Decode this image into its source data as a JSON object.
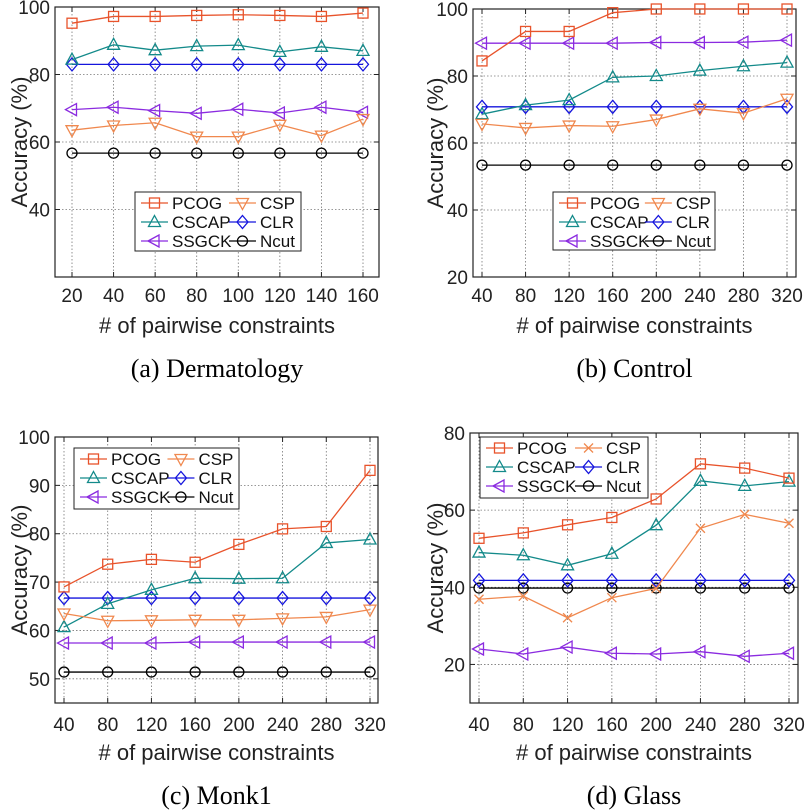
{
  "colors": {
    "PCOG": "#e8532b",
    "CSP": "#f0884e",
    "CSCAP": "#138a8a",
    "CLR": "#1515dd",
    "SSGCK": "#8b2be0",
    "Ncut": "#000000"
  },
  "chart_data": [
    {
      "type": "line",
      "caption": "(a) Dermatology",
      "xlabel": "# of pairwise constraints",
      "ylabel": "Accuracy (%)",
      "x": [
        20,
        40,
        60,
        80,
        100,
        120,
        140,
        160
      ],
      "ylim": [
        20,
        100
      ],
      "yticks": [
        40,
        60,
        80,
        100
      ],
      "grid": true,
      "legend_position": "lower-center",
      "series": [
        {
          "name": "PCOG",
          "marker": "square",
          "values": [
            95.2,
            97.2,
            97.2,
            97.5,
            97.7,
            97.5,
            97.2,
            98.2
          ]
        },
        {
          "name": "CSP",
          "marker": "triangle-down",
          "values": [
            63.5,
            64.9,
            65.7,
            61.6,
            61.6,
            65.1,
            61.9,
            66.8
          ]
        },
        {
          "name": "CSCAP",
          "marker": "triangle-up",
          "values": [
            84.4,
            88.8,
            87.2,
            88.4,
            88.7,
            86.7,
            88.2,
            87.0
          ]
        },
        {
          "name": "CLR",
          "marker": "diamond",
          "values": [
            83.0,
            83.0,
            83.0,
            83.0,
            83.0,
            83.0,
            83.0,
            83.0
          ]
        },
        {
          "name": "SSGCK",
          "marker": "triangle-left",
          "values": [
            69.6,
            70.3,
            69.3,
            68.5,
            69.7,
            68.6,
            70.3,
            68.8
          ]
        },
        {
          "name": "Ncut",
          "marker": "circle",
          "values": [
            56.7,
            56.7,
            56.7,
            56.7,
            56.7,
            56.7,
            56.7,
            56.7
          ]
        }
      ]
    },
    {
      "type": "line",
      "caption": "(b) Control",
      "xlabel": "# of pairwise constraints",
      "ylabel": "Accuracy (%)",
      "x": [
        40,
        80,
        120,
        160,
        200,
        240,
        280,
        320
      ],
      "ylim": [
        20,
        100
      ],
      "yticks": [
        20,
        40,
        60,
        80,
        100
      ],
      "grid": true,
      "legend_position": "lower-center",
      "series": [
        {
          "name": "PCOG",
          "marker": "square",
          "values": [
            84.5,
            93.3,
            93.3,
            98.9,
            100,
            100,
            100,
            100
          ]
        },
        {
          "name": "CSP",
          "marker": "triangle-down",
          "values": [
            65.7,
            64.5,
            65.2,
            65.0,
            67.0,
            70.2,
            68.9,
            73.2
          ]
        },
        {
          "name": "CSCAP",
          "marker": "triangle-up",
          "values": [
            68.6,
            71.3,
            72.8,
            79.6,
            80.0,
            81.6,
            82.9,
            84.0
          ]
        },
        {
          "name": "CLR",
          "marker": "diamond",
          "values": [
            70.8,
            70.8,
            70.8,
            70.8,
            70.8,
            70.8,
            70.8,
            70.8
          ]
        },
        {
          "name": "SSGCK",
          "marker": "triangle-left",
          "values": [
            89.8,
            89.8,
            89.8,
            89.8,
            90.0,
            90.0,
            90.1,
            90.7
          ]
        },
        {
          "name": "Ncut",
          "marker": "circle",
          "values": [
            53.4,
            53.4,
            53.4,
            53.4,
            53.4,
            53.4,
            53.4,
            53.4
          ]
        }
      ]
    },
    {
      "type": "line",
      "caption": "(c) Monk1",
      "xlabel": "# of pairwise constraints",
      "ylabel": "Accuracy (%)",
      "x": [
        40,
        80,
        120,
        160,
        200,
        240,
        280,
        320
      ],
      "ylim": [
        45,
        100
      ],
      "yticks": [
        50,
        60,
        70,
        80,
        90,
        100
      ],
      "grid": true,
      "legend_position": "top-left",
      "series": [
        {
          "name": "PCOG",
          "marker": "square",
          "values": [
            69.0,
            73.7,
            74.7,
            74.1,
            77.8,
            81.0,
            81.5,
            93.1
          ]
        },
        {
          "name": "CSP",
          "marker": "triangle-down",
          "values": [
            63.5,
            62.0,
            62.1,
            62.2,
            62.2,
            62.5,
            62.8,
            64.3
          ]
        },
        {
          "name": "CSCAP",
          "marker": "triangle-up",
          "values": [
            60.7,
            65.5,
            68.4,
            70.8,
            70.7,
            70.8,
            78.1,
            78.8
          ]
        },
        {
          "name": "CLR",
          "marker": "diamond",
          "values": [
            66.7,
            66.7,
            66.7,
            66.7,
            66.7,
            66.7,
            66.7,
            66.7
          ]
        },
        {
          "name": "SSGCK",
          "marker": "triangle-left",
          "values": [
            57.4,
            57.4,
            57.4,
            57.6,
            57.6,
            57.6,
            57.6,
            57.6
          ]
        },
        {
          "name": "Ncut",
          "marker": "circle",
          "values": [
            51.4,
            51.4,
            51.4,
            51.4,
            51.4,
            51.4,
            51.4,
            51.4
          ]
        }
      ]
    },
    {
      "type": "line",
      "caption": "(d) Glass",
      "xlabel": "# of pairwise constraints",
      "ylabel": "Accuracy (%)",
      "x": [
        40,
        80,
        120,
        160,
        200,
        240,
        280,
        320
      ],
      "ylim": [
        10,
        80
      ],
      "yticks": [
        20,
        40,
        60,
        80
      ],
      "grid": true,
      "legend_position": "top-left",
      "series": [
        {
          "name": "PCOG",
          "marker": "square",
          "values": [
            52.7,
            54.1,
            56.2,
            58.1,
            62.9,
            72.0,
            70.9,
            68.3
          ]
        },
        {
          "name": "CSP",
          "marker": "x",
          "values": [
            36.9,
            37.7,
            32.1,
            37.3,
            39.7,
            55.3,
            58.9,
            56.6
          ]
        },
        {
          "name": "CSCAP",
          "marker": "triangle-up",
          "values": [
            49.0,
            48.3,
            45.7,
            48.7,
            56.1,
            67.6,
            66.3,
            67.4
          ]
        },
        {
          "name": "CLR",
          "marker": "diamond",
          "values": [
            41.8,
            41.8,
            41.8,
            41.8,
            41.8,
            41.8,
            41.8,
            41.8
          ]
        },
        {
          "name": "SSGCK",
          "marker": "triangle-left",
          "values": [
            24.0,
            22.7,
            24.5,
            22.9,
            22.7,
            23.3,
            22.1,
            22.9
          ]
        },
        {
          "name": "Ncut",
          "marker": "circle",
          "values": [
            39.8,
            39.8,
            39.8,
            39.8,
            39.8,
            39.8,
            39.8,
            39.8
          ]
        }
      ]
    }
  ]
}
